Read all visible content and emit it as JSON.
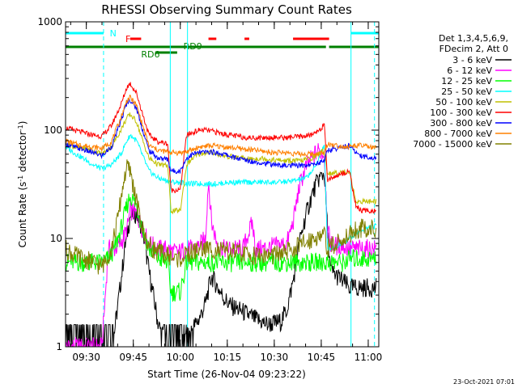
{
  "chart_data": {
    "type": "line",
    "title": "RHESSI Observing Summary Count Rates",
    "xlabel": "Start Time (26-Nov-04 09:23:22)",
    "ylabel": "Count Rate (s-1 detector-1)",
    "ylabel_parts": {
      "main": "Count Rate (s",
      "sup1": "-1",
      "mid": " detector",
      "sup2": "-1",
      "end": ")"
    },
    "y_scale": "log",
    "ylim": [
      1,
      1000
    ],
    "y_ticks": [
      "1",
      "10",
      "100",
      "1000"
    ],
    "x_ticks": [
      "09:30",
      "09:45",
      "10:00",
      "10:15",
      "10:30",
      "10:45",
      "11:00"
    ],
    "x_tick_minutes": [
      30,
      45,
      60,
      75,
      90,
      105,
      120
    ],
    "xlim_minutes": [
      23.37,
      123.37
    ],
    "x_unit": "minutes after 09:00 UT",
    "legend_header": [
      "Det 1,3,4,5,6,9,",
      "FDecim 2, Att 0"
    ],
    "legend_position": "right",
    "footer_date": "23-Oct-2021 07:01",
    "flags": {
      "N": {
        "label": "N",
        "color": "#00ffff",
        "segments": [
          [
            23.4,
            35.5
          ],
          [
            114.5,
            123.3
          ]
        ]
      },
      "F": {
        "label": "F",
        "color": "#ff0000",
        "segments": [
          [
            44.0,
            47.5
          ],
          [
            69.0,
            71.5
          ],
          [
            80.5,
            82.0
          ],
          [
            96.0,
            107.5
          ]
        ]
      },
      "RD9": {
        "label": "RD9",
        "color": "#008000",
        "segments": [
          [
            23.4,
            106.5
          ],
          [
            107.5,
            123.3
          ]
        ]
      },
      "RD6": {
        "label": "RD6",
        "color": "#008000",
        "segments": [
          [
            52.0,
            59.0
          ]
        ]
      }
    },
    "vlines": [
      {
        "minute": 35.5,
        "color": "#00ffff",
        "style": "dashed"
      },
      {
        "minute": 56.8,
        "color": "#00ffff",
        "style": "solid"
      },
      {
        "minute": 62.3,
        "color": "#00ffff",
        "style": "solid"
      },
      {
        "minute": 114.5,
        "color": "#00ffff",
        "style": "solid"
      },
      {
        "minute": 122.0,
        "color": "#00ffff",
        "style": "dashed"
      }
    ],
    "series": [
      {
        "name": "3 - 6 keV",
        "color": "#000000",
        "x": [
          23.4,
          26,
          29,
          33,
          35,
          37,
          39,
          41,
          42.5,
          44,
          46,
          48,
          50,
          53,
          56,
          58,
          60,
          62,
          64,
          66,
          68,
          70,
          72,
          74,
          76,
          80,
          84,
          88,
          92,
          94,
          96,
          98,
          100,
          102,
          104,
          106,
          107,
          108,
          110,
          112,
          114
        ],
        "y": [
          1,
          1,
          1,
          1,
          1,
          1,
          1.4,
          4,
          9,
          16,
          17,
          12,
          5,
          1.6,
          1,
          1,
          1,
          1.2,
          1.5,
          1.8,
          2.5,
          4.5,
          3.5,
          2.8,
          2.4,
          2.1,
          1.8,
          1.6,
          1.7,
          2.2,
          4,
          9,
          16,
          25,
          35,
          40,
          12,
          5,
          4.5,
          4,
          3.5
        ]
      },
      {
        "name": "6 - 12 keV",
        "color": "#ff00ff",
        "x": [
          23.4,
          26,
          29,
          32,
          35,
          37,
          39,
          41,
          43,
          44,
          46,
          48,
          50,
          53,
          56,
          58,
          60,
          62,
          64,
          66,
          68,
          69,
          70,
          72,
          74,
          76,
          80,
          83,
          84,
          86,
          90,
          94,
          96,
          98,
          100,
          102,
          104,
          106,
          107,
          108,
          110,
          112,
          114,
          116,
          118,
          120,
          122
        ],
        "y": [
          1,
          1,
          1,
          1,
          1,
          8,
          8,
          9,
          12,
          18,
          17,
          12,
          9,
          8,
          8,
          7.5,
          7.5,
          8,
          8,
          8.5,
          10,
          35,
          14,
          8.5,
          8,
          8,
          8,
          14,
          8,
          8,
          8.5,
          9,
          14,
          30,
          45,
          55,
          65,
          60,
          12,
          9,
          8.5,
          8.5,
          8,
          8,
          8,
          8,
          8
        ]
      },
      {
        "name": "12 - 25 keV",
        "color": "#00ff00",
        "x": [
          23.4,
          26,
          29,
          32,
          35,
          37,
          39,
          41,
          43,
          44,
          46,
          48,
          50,
          53,
          56,
          57,
          58,
          60,
          62,
          64,
          66,
          70,
          76,
          80,
          84,
          88,
          92,
          96,
          100,
          104,
          106,
          107,
          108,
          110,
          112,
          114,
          116,
          118,
          120,
          122
        ],
        "y": [
          6,
          6,
          6,
          6,
          6,
          6.5,
          8,
          12,
          20,
          25,
          20,
          12,
          8,
          6.5,
          6,
          3.2,
          3.2,
          3.2,
          6,
          6,
          6,
          6,
          6,
          6,
          6,
          6,
          6,
          6,
          6,
          6,
          6,
          6,
          6,
          6,
          6,
          6.5,
          6.5,
          6.5,
          6.5,
          6.5
        ]
      },
      {
        "name": "25 - 50 keV",
        "color": "#00ffff",
        "x": [
          23.4,
          26,
          29,
          32,
          35,
          38,
          41,
          43,
          44,
          46,
          48,
          50,
          53,
          56,
          58,
          60,
          62,
          64,
          66,
          68,
          70,
          72,
          76,
          80,
          84,
          88,
          92,
          96,
          100,
          103,
          105,
          106,
          107,
          110,
          114,
          116,
          118,
          120,
          122
        ],
        "y": [
          70,
          62,
          55,
          48,
          44,
          48,
          60,
          80,
          90,
          80,
          58,
          42,
          36,
          34,
          33,
          33,
          32,
          32,
          32,
          32,
          32,
          32,
          33,
          33,
          33,
          33,
          33,
          34,
          36,
          45,
          65,
          70,
          8,
          8.5,
          10,
          11,
          12,
          12.5,
          13
        ]
      },
      {
        "name": "50 - 100 keV",
        "color": "#c0c000",
        "x": [
          23.4,
          26,
          29,
          32,
          35,
          38,
          41,
          43,
          44,
          46,
          48,
          50,
          53,
          56,
          57,
          58,
          60,
          62,
          64,
          66,
          68,
          70,
          74,
          78,
          82,
          86,
          90,
          94,
          98,
          102,
          104,
          106,
          107,
          110,
          114,
          116,
          118,
          120,
          122
        ],
        "y": [
          75,
          70,
          68,
          65,
          60,
          70,
          100,
          130,
          140,
          120,
          80,
          55,
          48,
          47,
          18,
          18,
          18,
          48,
          55,
          60,
          62,
          62,
          58,
          56,
          54,
          55,
          53,
          52,
          52,
          55,
          60,
          65,
          40,
          40,
          42,
          22,
          22,
          22,
          22
        ]
      },
      {
        "name": "100 - 300 keV",
        "color": "#ff0000",
        "x": [
          23.4,
          26,
          29,
          32,
          35,
          38,
          41,
          43,
          44,
          46,
          48,
          50,
          53,
          56,
          57,
          58,
          60,
          62,
          64,
          66,
          68,
          70,
          74,
          78,
          82,
          86,
          90,
          94,
          98,
          102,
          104,
          106,
          107,
          110,
          114,
          116,
          118,
          120,
          122
        ],
        "y": [
          105,
          100,
          95,
          90,
          88,
          110,
          170,
          250,
          270,
          220,
          140,
          90,
          78,
          75,
          28,
          28,
          28,
          90,
          95,
          100,
          100,
          98,
          92,
          88,
          85,
          85,
          86,
          85,
          87,
          90,
          100,
          110,
          35,
          38,
          42,
          20,
          18,
          18,
          18
        ]
      },
      {
        "name": "300 - 800 keV",
        "color": "#0000ff",
        "x": [
          23.4,
          26,
          29,
          32,
          35,
          38,
          41,
          43,
          44,
          46,
          48,
          50,
          53,
          56,
          57,
          58,
          60,
          62,
          64,
          66,
          70,
          74,
          78,
          82,
          86,
          90,
          94,
          98,
          102,
          106,
          107,
          110,
          114,
          116,
          118,
          120,
          122
        ],
        "y": [
          75,
          70,
          66,
          62,
          58,
          70,
          120,
          180,
          190,
          160,
          100,
          65,
          55,
          54,
          42,
          42,
          42,
          55,
          60,
          62,
          63,
          60,
          55,
          52,
          50,
          48,
          47,
          47,
          48,
          52,
          65,
          68,
          72,
          62,
          58,
          56,
          55
        ]
      },
      {
        "name": "800 - 7000 keV",
        "color": "#ff8000",
        "x": [
          23.4,
          26,
          29,
          32,
          35,
          38,
          41,
          43,
          44,
          46,
          48,
          50,
          53,
          56,
          58,
          60,
          62,
          64,
          66,
          70,
          74,
          78,
          82,
          86,
          90,
          94,
          98,
          102,
          106,
          107,
          110,
          114,
          116,
          118,
          120,
          122
        ],
        "y": [
          80,
          75,
          72,
          70,
          68,
          78,
          130,
          190,
          200,
          170,
          110,
          72,
          65,
          63,
          62,
          62,
          63,
          66,
          70,
          72,
          70,
          68,
          66,
          64,
          62,
          62,
          60,
          60,
          62,
          75,
          72,
          70,
          72,
          72,
          70,
          68
        ]
      },
      {
        "name": "7000 - 15000 keV",
        "color": "#808000",
        "x": [
          23.4,
          26,
          29,
          32,
          35,
          38,
          40,
          42,
          43,
          44,
          46,
          48,
          50,
          53,
          56,
          58,
          60,
          62,
          64,
          66,
          70,
          74,
          78,
          82,
          86,
          90,
          94,
          98,
          102,
          106,
          107,
          110,
          114,
          116,
          118,
          120,
          122
        ],
        "y": [
          8,
          7,
          6.5,
          6,
          5.5,
          8,
          15,
          35,
          45,
          42,
          22,
          12,
          8.5,
          7.5,
          7,
          6.5,
          6.5,
          7,
          7.5,
          8,
          8,
          7.5,
          7.5,
          7,
          7,
          7,
          7.5,
          8.5,
          10,
          11,
          8,
          9,
          11,
          12,
          12.5,
          12.5,
          12
        ]
      }
    ]
  }
}
